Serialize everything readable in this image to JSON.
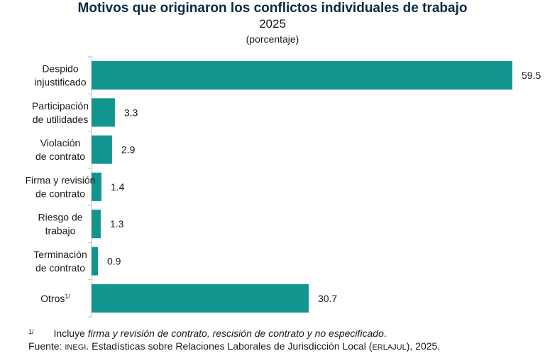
{
  "header": {
    "title": "Motivos que originaron los conflictos individuales de trabajo",
    "year": "2025",
    "units": "(porcentaje)"
  },
  "chart_data": {
    "type": "bar",
    "orientation": "horizontal",
    "categories": [
      [
        "Despido",
        "injustificado"
      ],
      [
        "Participación",
        "de utilidades"
      ],
      [
        "Violación",
        "de contrato"
      ],
      [
        "Firma y revisión",
        "de contrato"
      ],
      [
        "Riesgo de",
        "trabajo"
      ],
      [
        "Terminación",
        "de contrato"
      ],
      [
        "Otros1/"
      ]
    ],
    "values": [
      59.5,
      3.3,
      2.9,
      1.4,
      1.3,
      0.9,
      30.7
    ],
    "value_labels": [
      "59.5",
      "3.3",
      "2.9",
      "1.4",
      "1.3",
      "0.9",
      "30.7"
    ],
    "footnote_marker": "1/",
    "xlim": [
      0,
      59.5
    ],
    "bar_color": "#12958f",
    "grid": false,
    "legend": "none"
  },
  "footnote": {
    "marker": "1/",
    "lead": "Incluye ",
    "italic": "firma y revisión de contrato, rescisión de contrato y no especificado",
    "tail": "."
  },
  "source": {
    "label": "Fuente: ",
    "org": "INEGI",
    "text": ". Estadísticas sobre Relaciones Laborales de Jurisdicción Local (",
    "acronym": "ERLAJUL",
    "end": "), 2025."
  }
}
